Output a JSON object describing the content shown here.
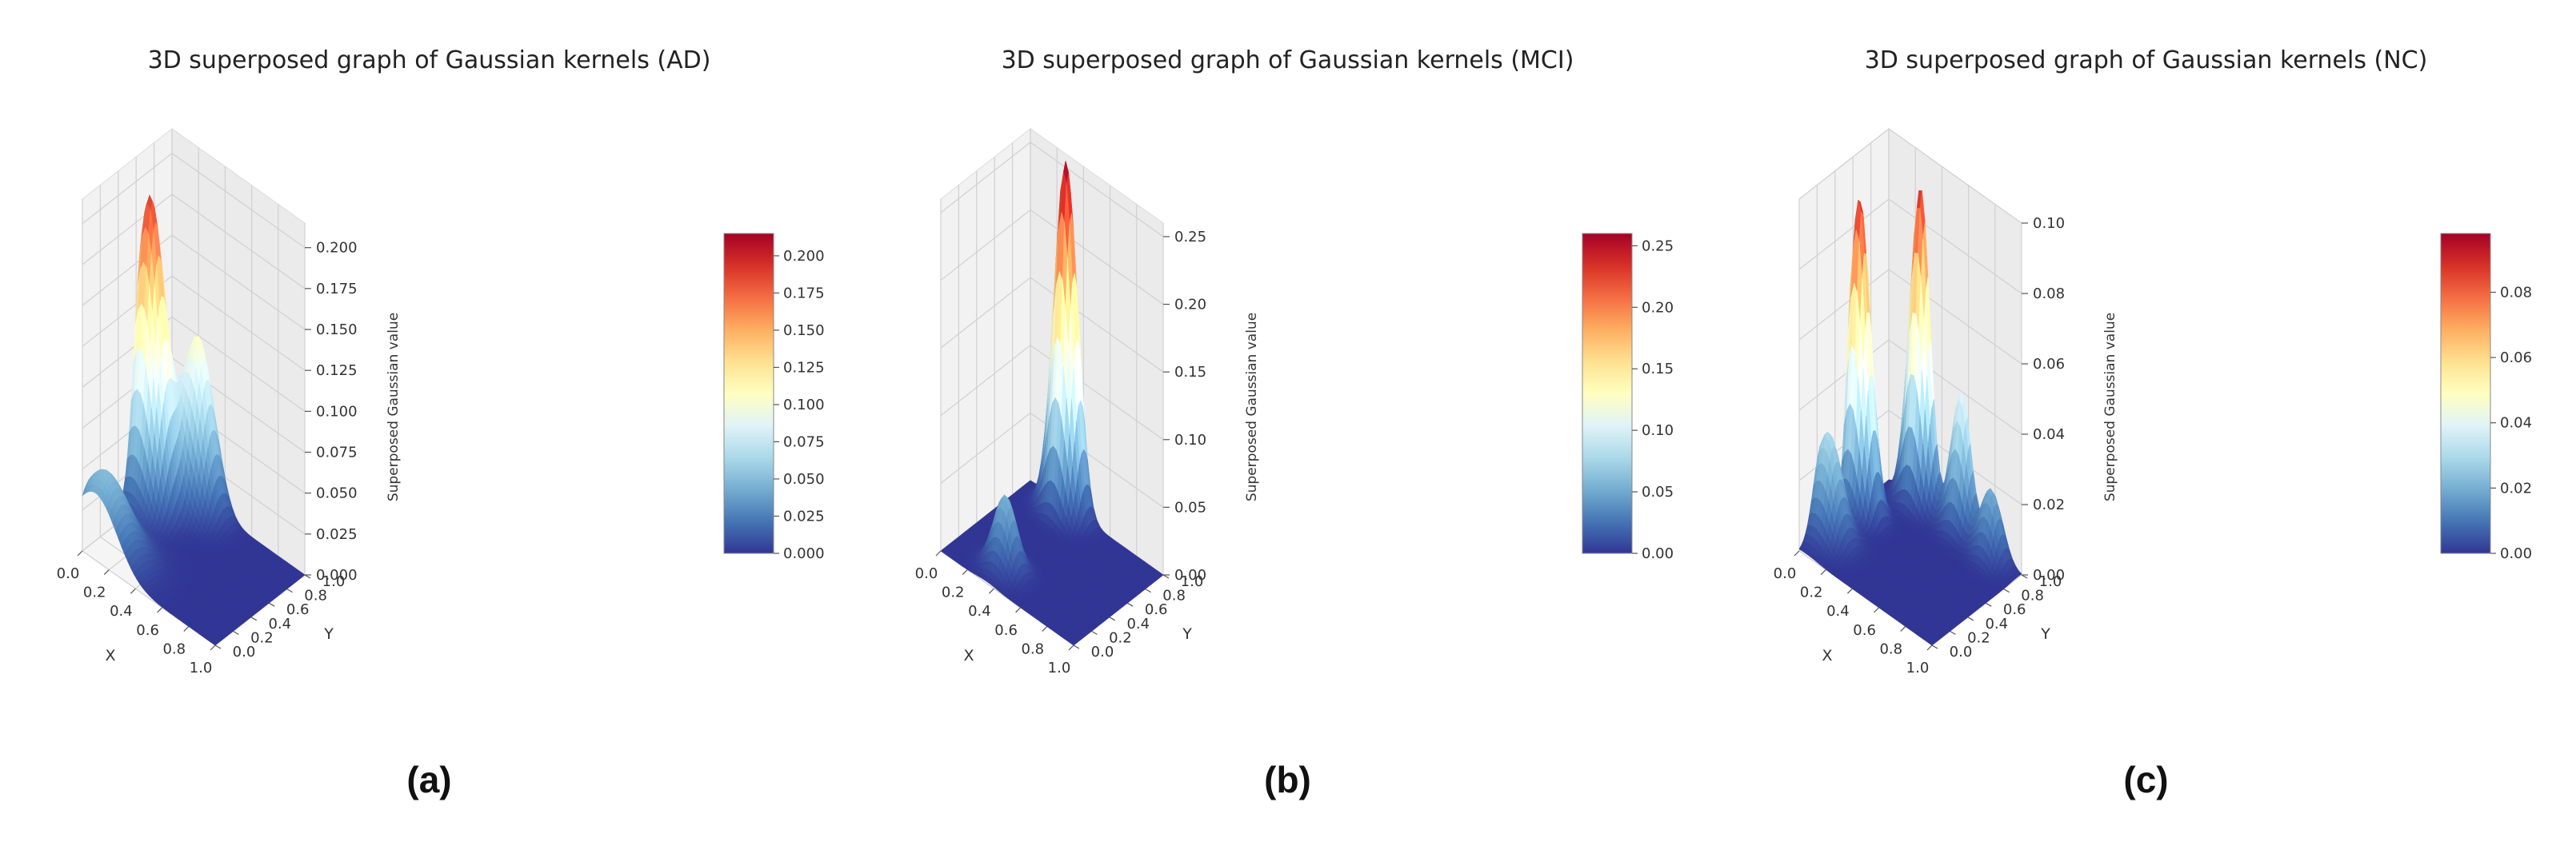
{
  "chart_data": [
    {
      "type": "surface",
      "title": "3D superposed graph of Gaussian kernels (AD)",
      "subtitle": "(a)",
      "xlabel": "X",
      "ylabel": "Y",
      "zlabel": "Superposed Gaussian value",
      "xlim": [
        0,
        1
      ],
      "ylim": [
        0,
        1
      ],
      "zlim": [
        0,
        0.215
      ],
      "x_ticks": [
        "0.0",
        "0.2",
        "0.4",
        "0.6",
        "0.8",
        "1.0"
      ],
      "y_ticks": [
        "0.0",
        "0.2",
        "0.4",
        "0.6",
        "0.8",
        "1.0"
      ],
      "z_ticks": [
        "0.000",
        "0.025",
        "0.050",
        "0.075",
        "0.100",
        "0.125",
        "0.150",
        "0.175",
        "0.200"
      ],
      "colorbar_ticks": [
        "0.000",
        "0.025",
        "0.050",
        "0.075",
        "0.100",
        "0.125",
        "0.150",
        "0.175",
        "0.200"
      ],
      "colorbar_range": [
        0,
        0.215
      ],
      "peak_max": 0.21,
      "kernels": [
        {
          "x": 0.05,
          "y": 0.68,
          "height": 0.19,
          "sigma": 0.1
        },
        {
          "x": 0.25,
          "y": 0.92,
          "height": 0.105,
          "sigma": 0.1
        },
        {
          "x": 0.1,
          "y": 0.1,
          "height": 0.05,
          "sigma": 0.16
        }
      ],
      "colormap": "RdYlBu_r"
    },
    {
      "type": "surface",
      "title": "3D superposed graph of Gaussian kernels (MCI)",
      "subtitle": "(b)",
      "xlabel": "X",
      "ylabel": "Y",
      "zlabel": "Superposed Gaussian value",
      "xlim": [
        0,
        1
      ],
      "ylim": [
        0,
        1
      ],
      "zlim": [
        0,
        0.26
      ],
      "x_ticks": [
        "0.0",
        "0.2",
        "0.4",
        "0.6",
        "0.8",
        "1.0"
      ],
      "y_ticks": [
        "0.0",
        "0.2",
        "0.4",
        "0.6",
        "0.8",
        "1.0"
      ],
      "z_ticks": [
        "0.00",
        "0.05",
        "0.10",
        "0.15",
        "0.20",
        "0.25"
      ],
      "colorbar_ticks": [
        "0.00",
        "0.05",
        "0.10",
        "0.15",
        "0.20",
        "0.25"
      ],
      "colorbar_range": [
        0,
        0.26
      ],
      "peak_max": 0.26,
      "kernels": [
        {
          "x": 0.3,
          "y": 0.95,
          "height": 0.26,
          "sigma": 0.075
        },
        {
          "x": 0.35,
          "y": 0.2,
          "height": 0.055,
          "sigma": 0.075
        }
      ],
      "colormap": "RdYlBu_r"
    },
    {
      "type": "surface",
      "title": "3D superposed graph of Gaussian kernels (NC)",
      "subtitle": "(c)",
      "xlabel": "X",
      "ylabel": "Y",
      "zlabel": "Superposed Gaussian value",
      "xlim": [
        0,
        1
      ],
      "ylim": [
        0,
        1
      ],
      "zlim": [
        0,
        0.1
      ],
      "x_ticks": [
        "0.0",
        "0.2",
        "0.4",
        "0.6",
        "0.8",
        "1.0"
      ],
      "y_ticks": [
        "0.0",
        "0.2",
        "0.4",
        "0.6",
        "0.8",
        "1.0"
      ],
      "z_ticks": [
        "0.00",
        "0.02",
        "0.04",
        "0.06",
        "0.08",
        "0.10"
      ],
      "colorbar_ticks": [
        "0.00",
        "0.02",
        "0.04",
        "0.06",
        "0.08"
      ],
      "colorbar_range": [
        0,
        0.098
      ],
      "peak_max": 0.09,
      "kernels": [
        {
          "x": 0.05,
          "y": 0.6,
          "height": 0.09,
          "sigma": 0.07
        },
        {
          "x": 0.24,
          "y": 1.0,
          "height": 0.09,
          "sigma": 0.07
        },
        {
          "x": 0.55,
          "y": 1.0,
          "height": 0.04,
          "sigma": 0.07
        },
        {
          "x": 0.05,
          "y": 0.25,
          "height": 0.03,
          "sigma": 0.09
        },
        {
          "x": 0.8,
          "y": 0.95,
          "height": 0.02,
          "sigma": 0.07
        }
      ],
      "colormap": "RdYlBu_r"
    }
  ]
}
